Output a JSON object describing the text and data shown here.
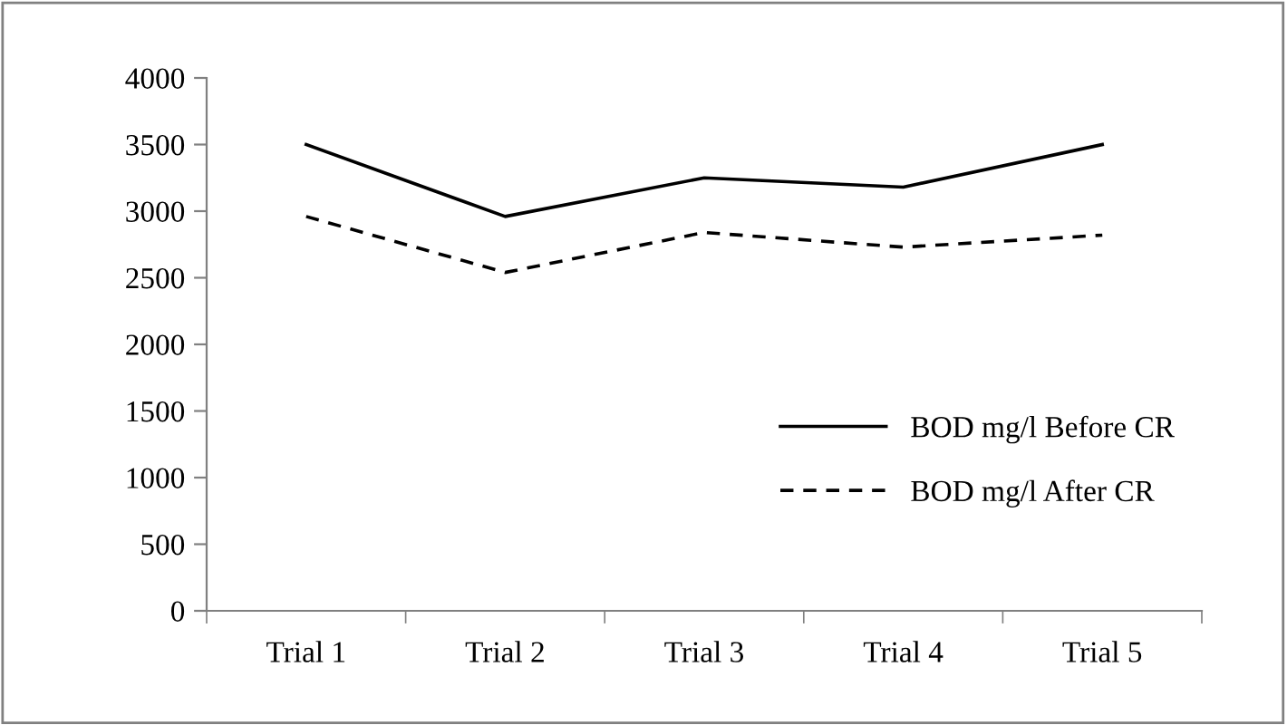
{
  "chart_data": {
    "type": "line",
    "categories": [
      "Trial 1",
      "Trial 2",
      "Trial 3",
      "Trial 4",
      "Trial 5"
    ],
    "series": [
      {
        "name": "BOD mg/l Before CR",
        "color": "#000000",
        "line_style": "solid",
        "values": [
          3500,
          2960,
          3250,
          3180,
          3500
        ]
      },
      {
        "name": "BOD mg/l After CR",
        "color": "#000000",
        "line_style": "dashed",
        "values": [
          2960,
          2540,
          2840,
          2730,
          2820
        ]
      }
    ],
    "ylim": [
      0,
      4000
    ],
    "yticks": [
      0,
      500,
      1000,
      1500,
      2000,
      2500,
      3000,
      3500,
      4000
    ],
    "grid": false,
    "legend": "right",
    "marker": "none"
  }
}
